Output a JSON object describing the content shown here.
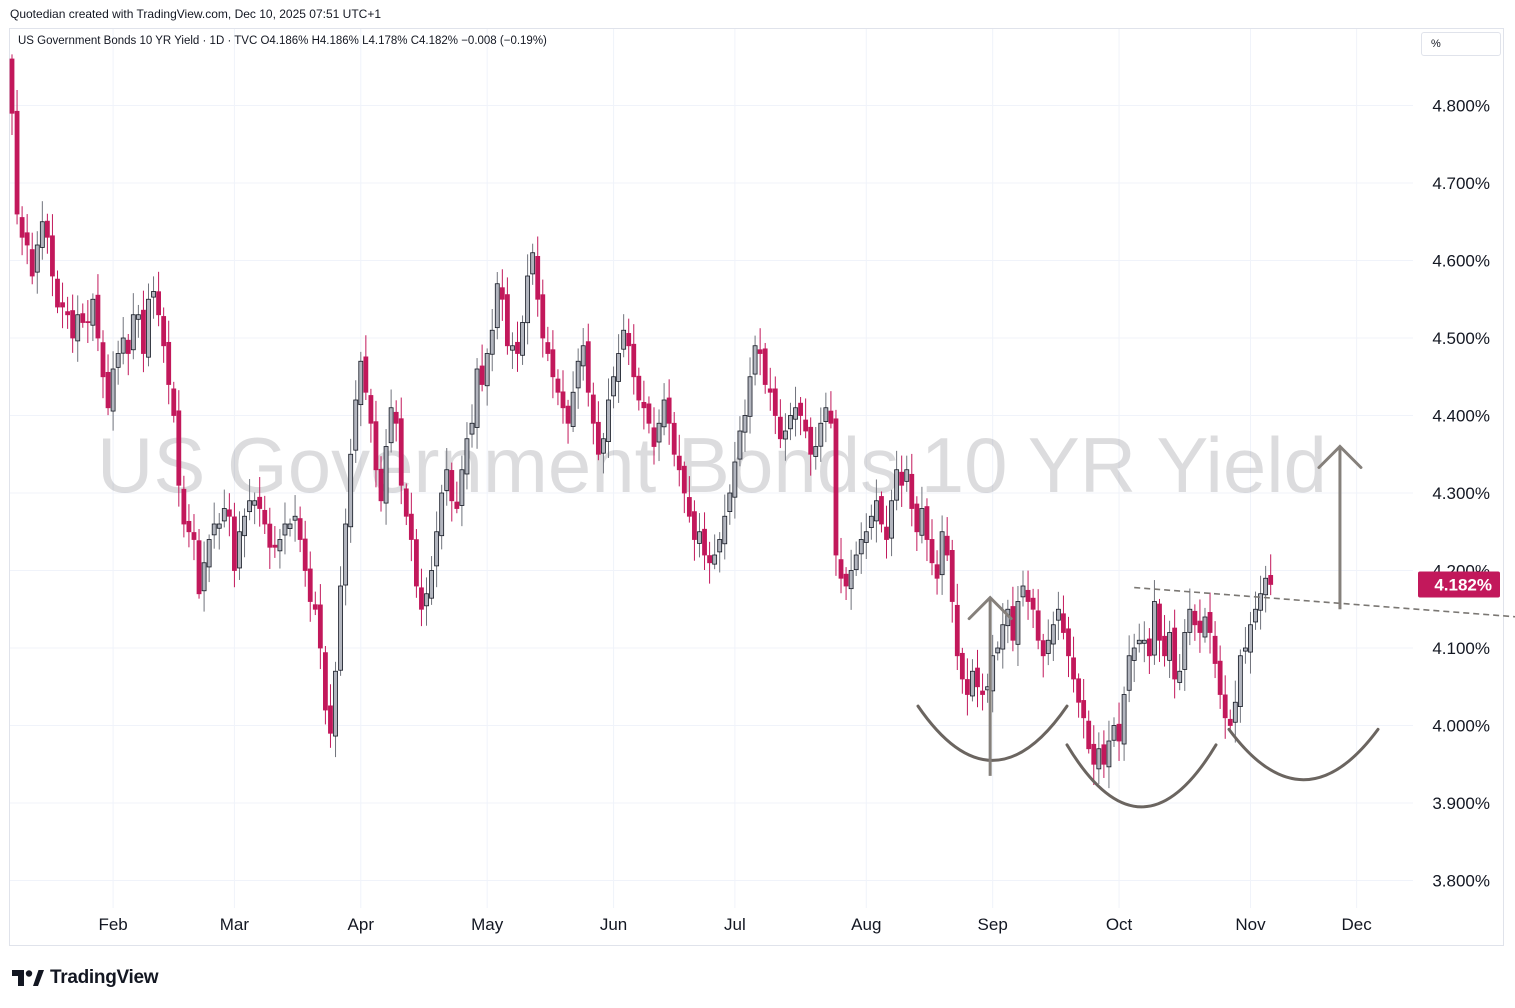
{
  "header": {
    "credit": "Quotedian created with TradingView.com, Dec 10, 2025 07:51 UTC+1",
    "legend": "US Government Bonds 10 YR Yield · 1D · TVC  O4.186%  H4.186%  L4.178%  C4.182%  −0.008 (−0.19%)",
    "unit_selector": "%"
  },
  "brand": {
    "name": "TradingView"
  },
  "colors": {
    "up": "#b2b5be",
    "down": "#c2185b",
    "grid": "#f0f3fa",
    "annotation": "#6b6560",
    "price_tag": "#c2185b"
  },
  "chart_data": {
    "type": "candlestick",
    "watermark": "US Government Bonds 10 YR Yield",
    "ylim": [
      3.76,
      4.86
    ],
    "y_tick_labels": [
      "3.800%",
      "3.900%",
      "4.000%",
      "4.100%",
      "4.200%",
      "4.300%",
      "4.400%",
      "4.500%",
      "4.600%",
      "4.700%",
      "4.800%"
    ],
    "y_tick_values": [
      3.8,
      3.9,
      4.0,
      4.1,
      4.2,
      4.3,
      4.4,
      4.5,
      4.6,
      4.7,
      4.8
    ],
    "x_tick_labels": [
      "Feb",
      "Mar",
      "Apr",
      "May",
      "Jun",
      "Jul",
      "Aug",
      "Sep",
      "Oct",
      "Nov",
      "Dec"
    ],
    "x_tick_index": [
      20,
      44,
      69,
      94,
      119,
      143,
      169,
      194,
      219,
      245,
      266
    ],
    "last_price": 4.182,
    "last_price_label": "4.182%",
    "closes": [
      4.79,
      4.66,
      4.63,
      4.62,
      4.58,
      4.62,
      4.65,
      4.63,
      4.58,
      4.54,
      4.54,
      4.53,
      4.5,
      4.53,
      4.52,
      4.52,
      4.55,
      4.5,
      4.45,
      4.41,
      4.46,
      4.48,
      4.5,
      4.48,
      4.53,
      4.53,
      4.48,
      4.55,
      4.56,
      4.53,
      4.49,
      4.44,
      4.4,
      4.31,
      4.26,
      4.25,
      4.24,
      4.17,
      4.21,
      4.24,
      4.26,
      4.26,
      4.28,
      4.27,
      4.2,
      4.25,
      4.27,
      4.29,
      4.29,
      4.28,
      4.26,
      4.23,
      4.23,
      4.24,
      4.26,
      4.26,
      4.27,
      4.24,
      4.2,
      4.16,
      4.15,
      4.1,
      4.02,
      3.99,
      4.07,
      4.18,
      4.26,
      4.35,
      4.42,
      4.47,
      4.43,
      4.39,
      4.33,
      4.29,
      4.36,
      4.41,
      4.39,
      4.31,
      4.27,
      4.24,
      4.18,
      4.15,
      4.17,
      4.2,
      4.25,
      4.3,
      4.33,
      4.29,
      4.28,
      4.33,
      4.37,
      4.39,
      4.46,
      4.44,
      4.48,
      4.51,
      4.57,
      4.55,
      4.49,
      4.49,
      4.48,
      4.52,
      4.58,
      4.61,
      4.55,
      4.5,
      4.48,
      4.45,
      4.43,
      4.41,
      4.39,
      4.43,
      4.47,
      4.49,
      4.43,
      4.39,
      4.35,
      4.37,
      4.42,
      4.45,
      4.48,
      4.51,
      4.49,
      4.45,
      4.42,
      4.41,
      4.39,
      4.36,
      4.39,
      4.42,
      4.39,
      4.35,
      4.33,
      4.3,
      4.27,
      4.24,
      4.25,
      4.22,
      4.21,
      4.22,
      4.24,
      4.27,
      4.3,
      4.34,
      4.38,
      4.4,
      4.45,
      4.49,
      4.48,
      4.44,
      4.43,
      4.4,
      4.37,
      4.38,
      4.4,
      4.41,
      4.4,
      4.38,
      4.35,
      4.36,
      4.39,
      4.41,
      4.39,
      4.22,
      4.19,
      4.18,
      4.2,
      4.22,
      4.24,
      4.25,
      4.27,
      4.29,
      4.26,
      4.24,
      4.29,
      4.33,
      4.31,
      4.33,
      4.28,
      4.25,
      4.28,
      4.24,
      4.21,
      4.19,
      4.25,
      4.22,
      4.16,
      4.09,
      4.06,
      4.04,
      4.07,
      4.05,
      4.04,
      4.05,
      4.09,
      4.1,
      4.13,
      4.15,
      4.11,
      4.16,
      4.18,
      4.16,
      4.15,
      4.11,
      4.09,
      4.11,
      4.13,
      4.15,
      4.12,
      4.09,
      4.06,
      4.03,
      4.01,
      3.97,
      3.95,
      3.97,
      3.95,
      3.98,
      4.0,
      3.98,
      4.04,
      4.09,
      4.1,
      4.11,
      4.11,
      4.09,
      4.16,
      4.11,
      4.09,
      4.12,
      4.06,
      4.07,
      4.12,
      4.15,
      4.13,
      4.12,
      4.14,
      4.12,
      4.08,
      4.04,
      4.01,
      4.0,
      4.03,
      4.09,
      4.1,
      4.13,
      4.15,
      4.17,
      4.19,
      4.182
    ]
  },
  "annotations": {
    "neckline": [
      {
        "i": 222,
        "v": 4.178
      },
      {
        "i": 302,
        "v": 4.138
      }
    ],
    "target_arrows": [
      {
        "i": 193.5,
        "from": 3.935,
        "to": 4.165
      },
      {
        "i": 262.7,
        "from": 4.15,
        "to": 4.36
      }
    ],
    "arcs": [
      {
        "x1": 918,
        "x2": 1067,
        "top": 4.025,
        "bottom": 3.955
      },
      {
        "x1": 1067,
        "x2": 1216,
        "top": 3.975,
        "bottom": 3.895
      },
      {
        "x1": 1229,
        "x2": 1378,
        "top": 3.995,
        "bottom": 3.93
      }
    ]
  }
}
